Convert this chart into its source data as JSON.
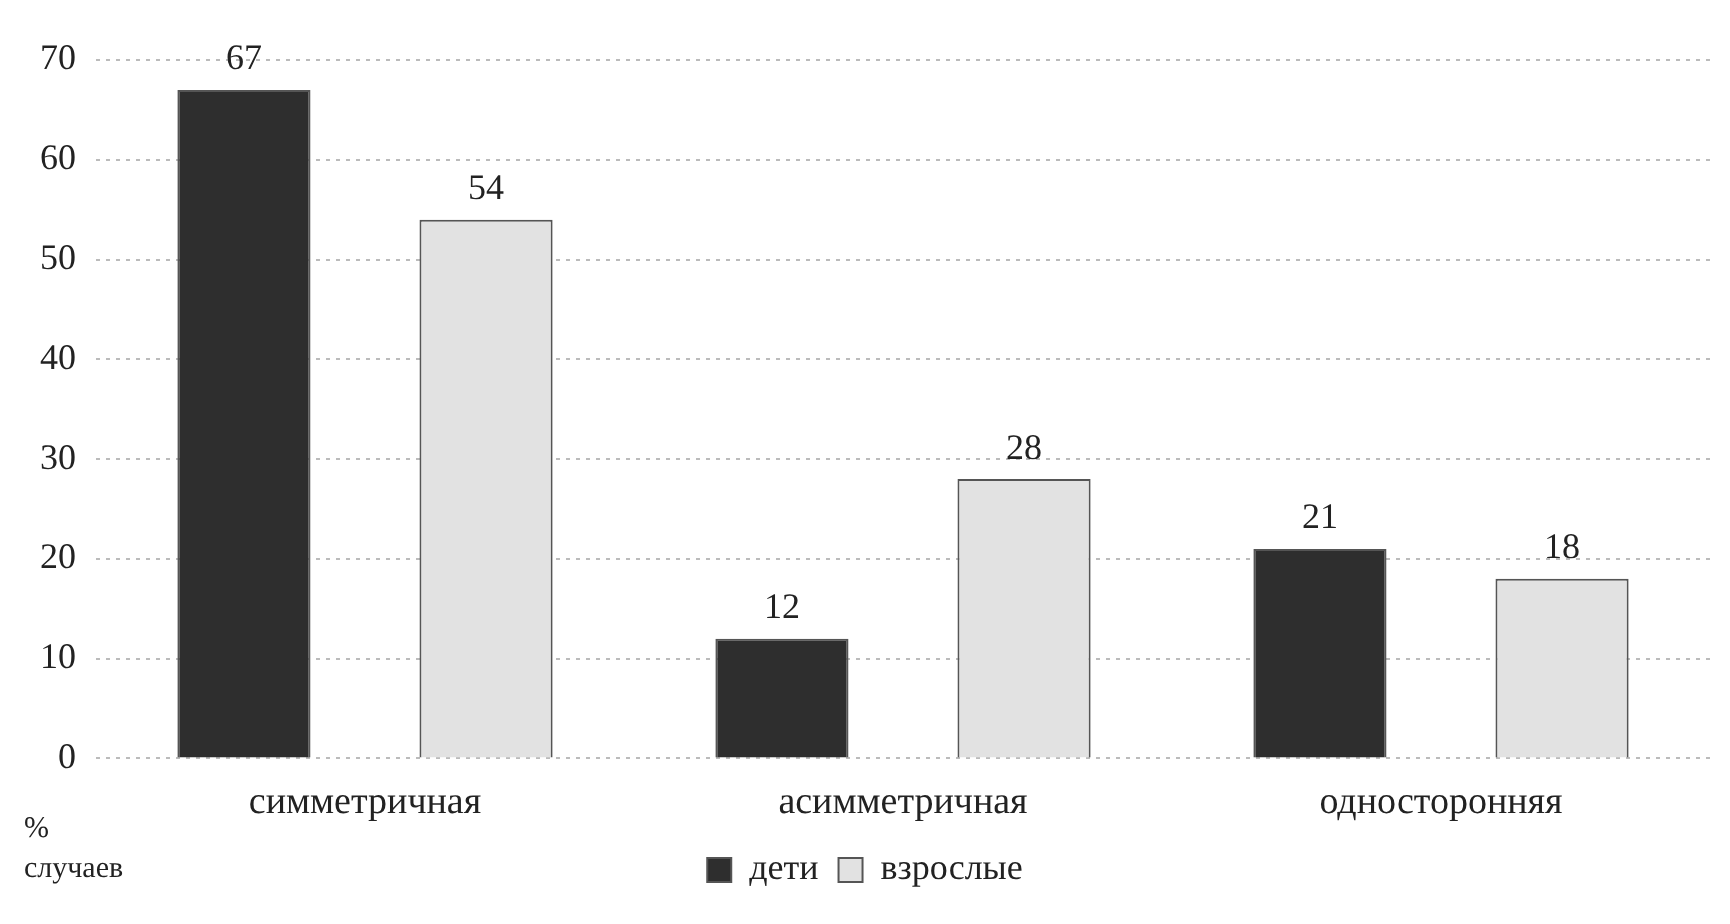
{
  "chart_data": {
    "type": "bar",
    "ylabel": "% случаев",
    "categories": [
      "симметричная",
      "асимметричная",
      "односторонняя"
    ],
    "series": [
      {
        "name": "дети",
        "color": "#2e2e2e",
        "values": [
          67,
          12,
          21
        ]
      },
      {
        "name": "взрослые",
        "color": "#e2e2e2",
        "values": [
          54,
          28,
          18
        ]
      }
    ],
    "ylim": [
      0,
      70
    ],
    "yticks": [
      0,
      10,
      20,
      30,
      40,
      50,
      60,
      70
    ],
    "grid": "y",
    "legend": "bottom",
    "data_labels": true
  }
}
